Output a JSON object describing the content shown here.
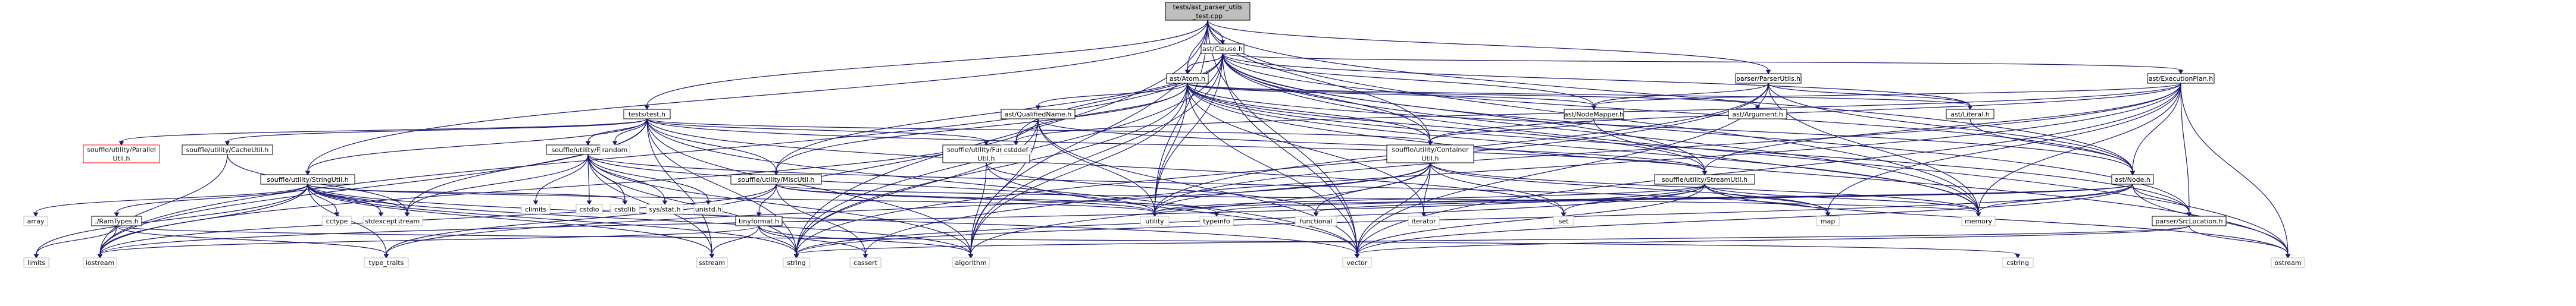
{
  "graph": {
    "title": "Include dependency graph for tests/ast_parser_utils_test.cpp",
    "nodes": [
      {
        "id": "root",
        "lines": [
          "tests/ast_parser_utils",
          "_test.cpp"
        ],
        "kind": "root"
      },
      {
        "id": "clause",
        "lines": [
          "ast/Clause.h"
        ],
        "kind": "file"
      },
      {
        "id": "parser_utils",
        "lines": [
          "parser/ParserUtils.h"
        ],
        "kind": "file"
      },
      {
        "id": "tests_test",
        "lines": [
          "tests/test.h"
        ],
        "kind": "file"
      },
      {
        "id": "atom",
        "lines": [
          "ast/Atom.h"
        ],
        "kind": "file"
      },
      {
        "id": "execution_plan",
        "lines": [
          "ast/ExecutionPlan.h"
        ],
        "kind": "file"
      },
      {
        "id": "qualified_name",
        "lines": [
          "ast/QualifiedName.h"
        ],
        "kind": "file"
      },
      {
        "id": "node_mapper",
        "lines": [
          "ast/NodeMapper.h"
        ],
        "kind": "file"
      },
      {
        "id": "argument",
        "lines": [
          "ast/Argument.h"
        ],
        "kind": "file"
      },
      {
        "id": "literal",
        "lines": [
          "ast/Literal.h"
        ],
        "kind": "file"
      },
      {
        "id": "ast_node",
        "lines": [
          "ast/Node.h"
        ],
        "kind": "file"
      },
      {
        "id": "src_location",
        "lines": [
          "parser/SrcLocation.h"
        ],
        "kind": "file"
      },
      {
        "id": "container_util",
        "lines": [
          "souffle/utility/Container",
          "Util.h"
        ],
        "kind": "file"
      },
      {
        "id": "stream_util",
        "lines": [
          "souffle/utility/StreamUtil.h"
        ],
        "kind": "file"
      },
      {
        "id": "misc_util",
        "lines": [
          "souffle/utility/MiscUtil.h"
        ],
        "kind": "file"
      },
      {
        "id": "functional_util",
        "lines": [
          "souffle/utility/Functional",
          "Util.h"
        ],
        "kind": "file"
      },
      {
        "id": "parallel_util",
        "lines": [
          "souffle/utility/Parallel",
          "Util.h"
        ],
        "kind": "missing"
      },
      {
        "id": "cache_util",
        "lines": [
          "souffle/utility/CacheUtil.h"
        ],
        "kind": "file"
      },
      {
        "id": "string_util",
        "lines": [
          "souffle/utility/StringUtil.h"
        ],
        "kind": "file"
      },
      {
        "id": "file_util",
        "lines": [
          "souffle/utility/FileUtil.h"
        ],
        "kind": "file"
      },
      {
        "id": "ram_types",
        "lines": [
          "./RamTypes.h"
        ],
        "kind": "file"
      },
      {
        "id": "tinyformat",
        "lines": [
          "tinyformat.h"
        ],
        "kind": "file"
      },
      {
        "id": "random",
        "lines": [
          "random"
        ],
        "kind": "system"
      },
      {
        "id": "cstddef",
        "lines": [
          "cstddef"
        ],
        "kind": "system"
      },
      {
        "id": "iterator",
        "lines": [
          "iterator"
        ],
        "kind": "system"
      },
      {
        "id": "functional",
        "lines": [
          "functional"
        ],
        "kind": "system"
      },
      {
        "id": "typeinfo",
        "lines": [
          "typeinfo"
        ],
        "kind": "system"
      },
      {
        "id": "utility",
        "lines": [
          "utility"
        ],
        "kind": "system"
      },
      {
        "id": "set",
        "lines": [
          "set"
        ],
        "kind": "system"
      },
      {
        "id": "map",
        "lines": [
          "map"
        ],
        "kind": "system"
      },
      {
        "id": "memory",
        "lines": [
          "memory"
        ],
        "kind": "system"
      },
      {
        "id": "cstdlib",
        "lines": [
          "cstdlib"
        ],
        "kind": "system"
      },
      {
        "id": "climits",
        "lines": [
          "climits"
        ],
        "kind": "system"
      },
      {
        "id": "cstdio",
        "lines": [
          "cstdio"
        ],
        "kind": "system"
      },
      {
        "id": "sys_stat",
        "lines": [
          "sys/stat.h"
        ],
        "kind": "system"
      },
      {
        "id": "unistd",
        "lines": [
          "unistd.h"
        ],
        "kind": "system"
      },
      {
        "id": "fstream",
        "lines": [
          "fstream"
        ],
        "kind": "system"
      },
      {
        "id": "cctype",
        "lines": [
          "cctype"
        ],
        "kind": "system"
      },
      {
        "id": "stdexcept",
        "lines": [
          "stdexcept"
        ],
        "kind": "system"
      },
      {
        "id": "array",
        "lines": [
          "array"
        ],
        "kind": "system"
      },
      {
        "id": "limits",
        "lines": [
          "limits"
        ],
        "kind": "system"
      },
      {
        "id": "iostream",
        "lines": [
          "iostream"
        ],
        "kind": "system"
      },
      {
        "id": "type_traits",
        "lines": [
          "type_traits"
        ],
        "kind": "system"
      },
      {
        "id": "sstream",
        "lines": [
          "sstream"
        ],
        "kind": "system"
      },
      {
        "id": "string",
        "lines": [
          "string"
        ],
        "kind": "system"
      },
      {
        "id": "cassert",
        "lines": [
          "cassert"
        ],
        "kind": "system"
      },
      {
        "id": "algorithm",
        "lines": [
          "algorithm"
        ],
        "kind": "system"
      },
      {
        "id": "vector",
        "lines": [
          "vector"
        ],
        "kind": "system"
      },
      {
        "id": "cstring",
        "lines": [
          "cstring"
        ],
        "kind": "system"
      },
      {
        "id": "ostream",
        "lines": [
          "ostream"
        ],
        "kind": "system"
      }
    ],
    "edges": [
      [
        "root",
        "clause"
      ],
      [
        "root",
        "parser_utils"
      ],
      [
        "root",
        "tests_test"
      ],
      [
        "root",
        "atom"
      ],
      [
        "root",
        "container_util"
      ],
      [
        "root",
        "string_util"
      ],
      [
        "root",
        "string"
      ],
      [
        "root",
        "vector"
      ],
      [
        "root",
        "utility"
      ],
      [
        "root",
        "memory"
      ],
      [
        "root",
        "algorithm"
      ],
      [
        "root",
        "ast_node"
      ],
      [
        "clause",
        "atom"
      ],
      [
        "clause",
        "execution_plan"
      ],
      [
        "clause",
        "literal"
      ],
      [
        "clause",
        "ast_node"
      ],
      [
        "clause",
        "node_mapper"
      ],
      [
        "clause",
        "src_location"
      ],
      [
        "clause",
        "container_util"
      ],
      [
        "clause",
        "stream_util"
      ],
      [
        "clause",
        "misc_util"
      ],
      [
        "clause",
        "algorithm"
      ],
      [
        "clause",
        "cstddef"
      ],
      [
        "clause",
        "memory"
      ],
      [
        "clause",
        "ostream"
      ],
      [
        "clause",
        "string"
      ],
      [
        "clause",
        "utility"
      ],
      [
        "clause",
        "vector"
      ],
      [
        "clause",
        "iostream"
      ],
      [
        "parser_utils",
        "ast_node"
      ],
      [
        "parser_utils",
        "literal"
      ],
      [
        "parser_utils",
        "node_mapper"
      ],
      [
        "parser_utils",
        "memory"
      ],
      [
        "parser_utils",
        "utility"
      ],
      [
        "parser_utils",
        "vector"
      ],
      [
        "parser_utils",
        "string"
      ],
      [
        "tests_test",
        "random"
      ],
      [
        "tests_test",
        "cache_util"
      ],
      [
        "tests_test",
        "container_util"
      ],
      [
        "tests_test",
        "file_util"
      ],
      [
        "tests_test",
        "functional_util"
      ],
      [
        "tests_test",
        "misc_util"
      ],
      [
        "tests_test",
        "parallel_util"
      ],
      [
        "tests_test",
        "stream_util"
      ],
      [
        "tests_test",
        "string_util"
      ],
      [
        "tests_test",
        "string"
      ],
      [
        "tests_test",
        "fstream"
      ],
      [
        "tests_test",
        "iostream"
      ],
      [
        "tests_test",
        "sstream"
      ],
      [
        "tests_test",
        "algorithm"
      ],
      [
        "tests_test",
        "set"
      ],
      [
        "tests_test",
        "vector"
      ],
      [
        "atom",
        "argument"
      ],
      [
        "atom",
        "literal"
      ],
      [
        "atom",
        "ast_node"
      ],
      [
        "atom",
        "node_mapper"
      ],
      [
        "atom",
        "qualified_name"
      ],
      [
        "atom",
        "src_location"
      ],
      [
        "atom",
        "container_util"
      ],
      [
        "atom",
        "stream_util"
      ],
      [
        "atom",
        "misc_util"
      ],
      [
        "atom",
        "algorithm"
      ],
      [
        "atom",
        "cstddef"
      ],
      [
        "atom",
        "iterator"
      ],
      [
        "atom",
        "memory"
      ],
      [
        "atom",
        "ostream"
      ],
      [
        "atom",
        "string"
      ],
      [
        "atom",
        "utility"
      ],
      [
        "atom",
        "vector"
      ],
      [
        "execution_plan",
        "ast_node"
      ],
      [
        "execution_plan",
        "node_mapper"
      ],
      [
        "execution_plan",
        "src_location"
      ],
      [
        "execution_plan",
        "container_util"
      ],
      [
        "execution_plan",
        "stream_util"
      ],
      [
        "execution_plan",
        "map"
      ],
      [
        "execution_plan",
        "memory"
      ],
      [
        "execution_plan",
        "ostream"
      ],
      [
        "execution_plan",
        "utility"
      ],
      [
        "execution_plan",
        "vector"
      ],
      [
        "execution_plan",
        "cassert"
      ],
      [
        "execution_plan",
        "cstddef"
      ],
      [
        "qualified_name",
        "stream_util"
      ],
      [
        "qualified_name",
        "algorithm"
      ],
      [
        "qualified_name",
        "iostream"
      ],
      [
        "qualified_name",
        "string"
      ],
      [
        "qualified_name",
        "utility"
      ],
      [
        "qualified_name",
        "vector"
      ],
      [
        "node_mapper",
        "container_util"
      ],
      [
        "node_mapper",
        "memory"
      ],
      [
        "literal",
        "ast_node"
      ],
      [
        "ast_node",
        "src_location"
      ],
      [
        "ast_node",
        "utility"
      ],
      [
        "ast_node",
        "functional"
      ],
      [
        "ast_node",
        "memory"
      ],
      [
        "ast_node",
        "ostream"
      ],
      [
        "ast_node",
        "string"
      ],
      [
        "ast_node",
        "typeinfo"
      ],
      [
        "ast_node",
        "vector"
      ],
      [
        "src_location",
        "ostream"
      ],
      [
        "src_location",
        "string"
      ],
      [
        "src_location",
        "vector"
      ],
      [
        "container_util",
        "iterator"
      ],
      [
        "container_util",
        "map"
      ],
      [
        "container_util",
        "memory"
      ],
      [
        "container_util",
        "set"
      ],
      [
        "container_util",
        "utility"
      ],
      [
        "container_util",
        "vector"
      ],
      [
        "container_util",
        "algorithm"
      ],
      [
        "container_util",
        "functional"
      ],
      [
        "container_util",
        "type_traits"
      ],
      [
        "stream_util",
        "map"
      ],
      [
        "stream_util",
        "memory"
      ],
      [
        "stream_util",
        "ostream"
      ],
      [
        "stream_util",
        "set"
      ],
      [
        "stream_util",
        "string"
      ],
      [
        "stream_util",
        "utility"
      ],
      [
        "stream_util",
        "vector"
      ],
      [
        "stream_util",
        "iostream"
      ],
      [
        "misc_util",
        "tinyformat"
      ],
      [
        "misc_util",
        "cassert"
      ],
      [
        "misc_util",
        "cstddef"
      ],
      [
        "misc_util",
        "iostream"
      ],
      [
        "misc_util",
        "memory"
      ],
      [
        "misc_util",
        "type_traits"
      ],
      [
        "misc_util",
        "utility"
      ],
      [
        "misc_util",
        "typeinfo"
      ],
      [
        "functional_util",
        "functional"
      ],
      [
        "functional_util",
        "algorithm"
      ],
      [
        "functional_util",
        "vector"
      ],
      [
        "cache_util",
        "fstream"
      ],
      [
        "cache_util",
        "iostream"
      ],
      [
        "string_util",
        "ram_types"
      ],
      [
        "string_util",
        "cctype"
      ],
      [
        "string_util",
        "stdexcept"
      ],
      [
        "string_util",
        "array"
      ],
      [
        "string_util",
        "fstream"
      ],
      [
        "string_util",
        "limits"
      ],
      [
        "string_util",
        "iostream"
      ],
      [
        "string_util",
        "sstream"
      ],
      [
        "string_util",
        "string"
      ],
      [
        "string_util",
        "type_traits"
      ],
      [
        "string_util",
        "vector"
      ],
      [
        "string_util",
        "algorithm"
      ],
      [
        "string_util",
        "utility"
      ],
      [
        "string_util",
        "cstdlib"
      ],
      [
        "file_util",
        "climits"
      ],
      [
        "file_util",
        "cstdio"
      ],
      [
        "file_util",
        "cstdlib"
      ],
      [
        "file_util",
        "fstream"
      ],
      [
        "file_util",
        "sys_stat"
      ],
      [
        "file_util",
        "unistd"
      ],
      [
        "file_util",
        "algorithm"
      ],
      [
        "file_util",
        "sstream"
      ],
      [
        "file_util",
        "string"
      ],
      [
        "file_util",
        "utility"
      ],
      [
        "file_util",
        "map"
      ],
      [
        "file_util",
        "cstdlib"
      ],
      [
        "ram_types",
        "cstring"
      ],
      [
        "ram_types",
        "limits"
      ],
      [
        "ram_types",
        "iostream"
      ],
      [
        "ram_types",
        "type_traits"
      ],
      [
        "tinyformat",
        "cassert"
      ],
      [
        "tinyformat",
        "iostream"
      ],
      [
        "tinyformat",
        "sstream"
      ],
      [
        "tinyformat",
        "algorithm"
      ],
      [
        "tinyformat",
        "string"
      ]
    ]
  }
}
